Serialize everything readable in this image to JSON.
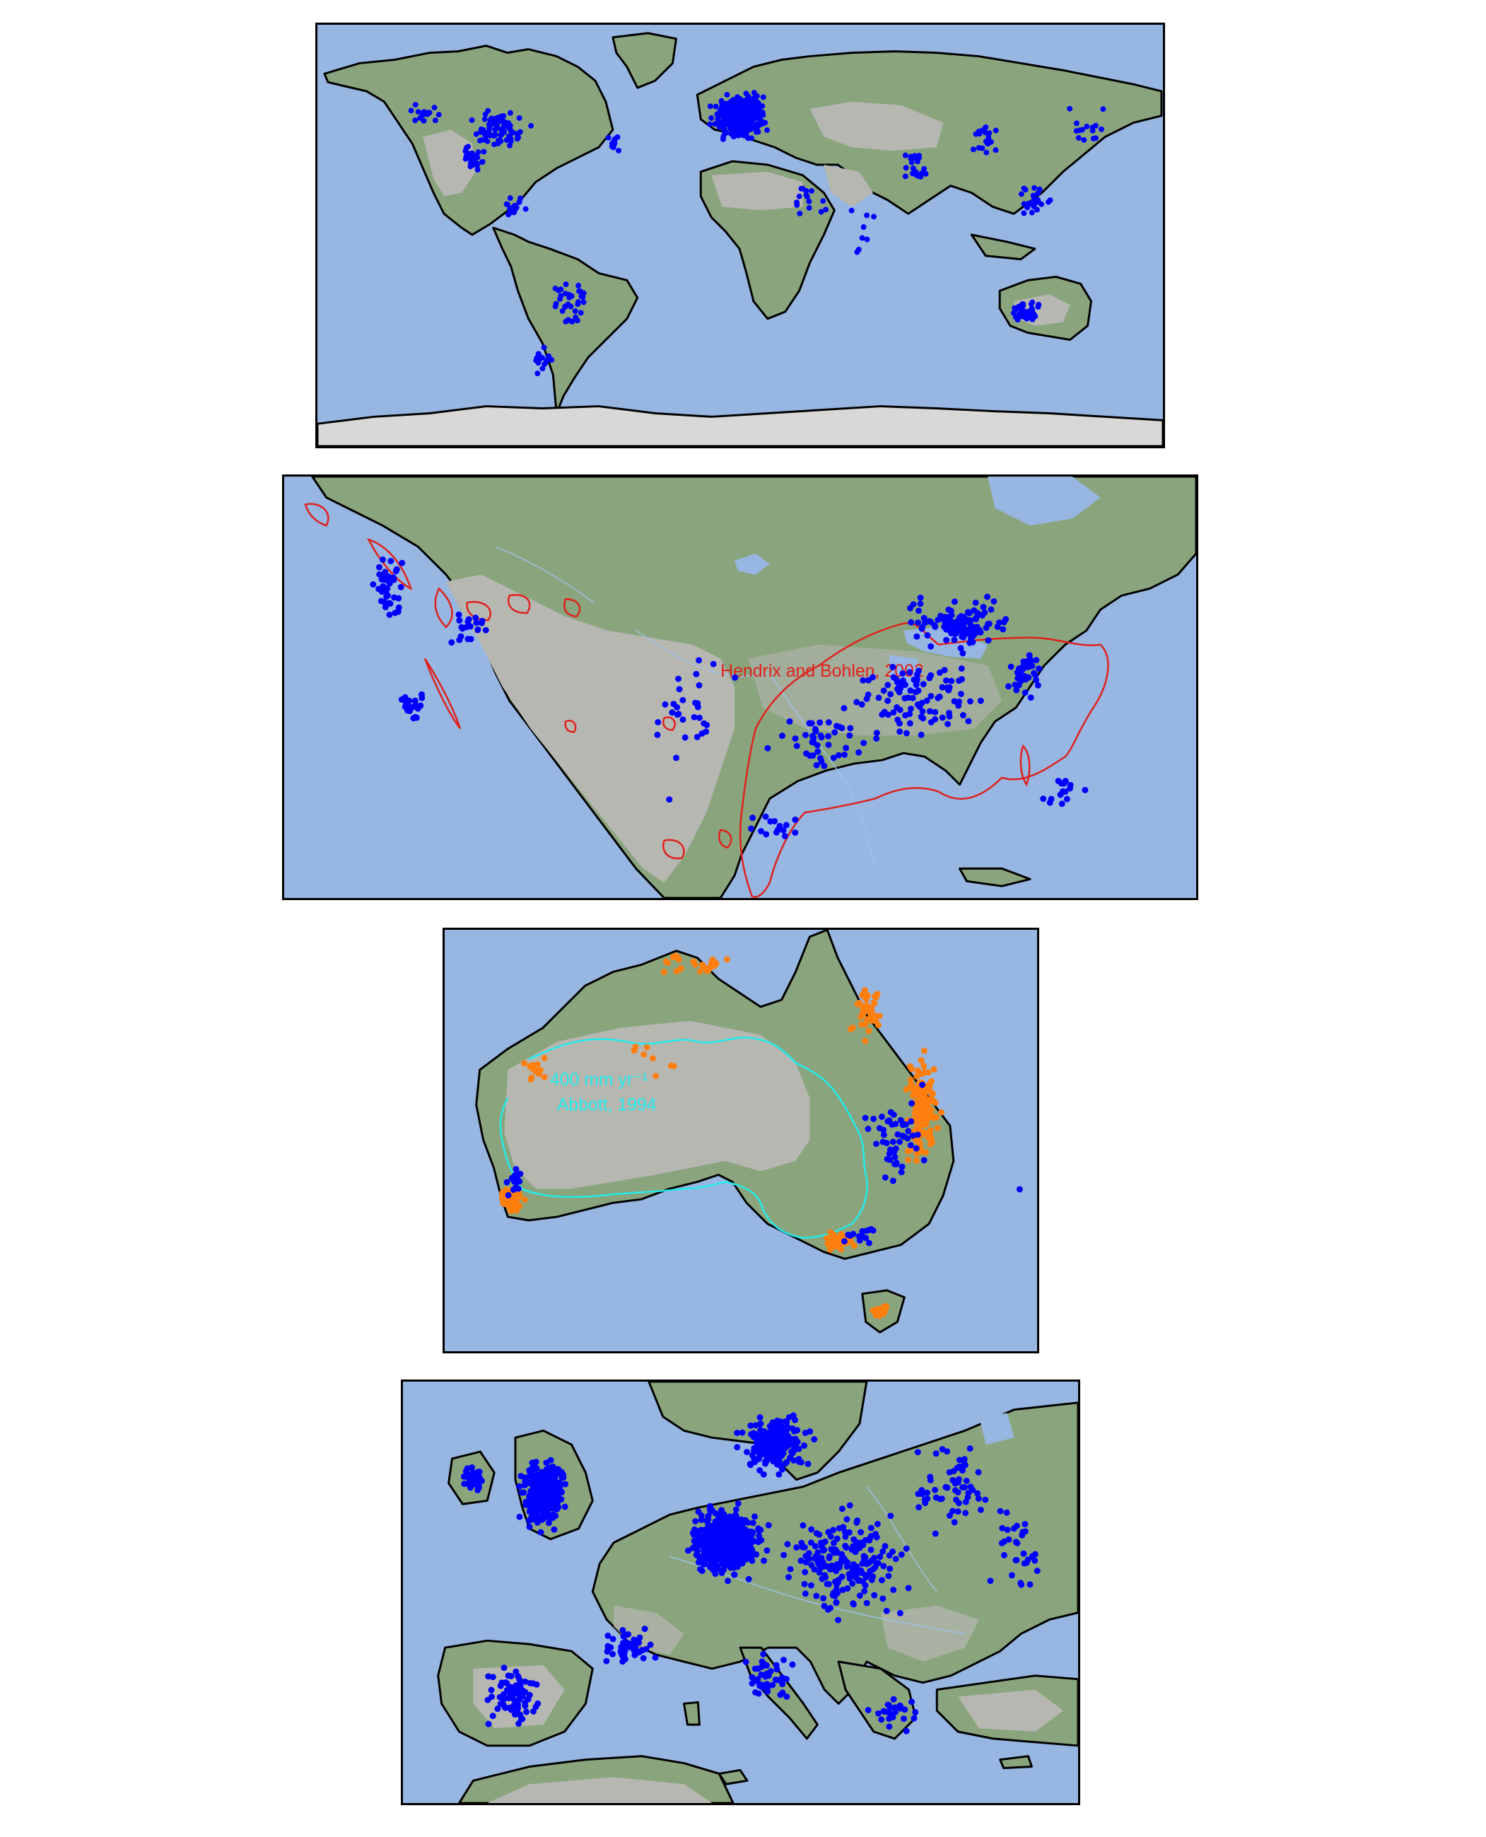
{
  "colors": {
    "ocean": "#97b6e1",
    "land": "#8aa57e",
    "arid": "#b7b7b2",
    "coastline": "#000000",
    "site_marker": "#0000ff",
    "australia_extra_marker": "#ff7f0e",
    "hendrix_range": "#e0201c",
    "isohyet": "#20ecec"
  },
  "panels": [
    {
      "id": "world",
      "region": "World",
      "marker_color": "#0000ff"
    },
    {
      "id": "north-america",
      "region": "North America",
      "marker_color": "#0000ff",
      "annotation": "Hendrix and Bohlen, 2002"
    },
    {
      "id": "australia",
      "region": "Australia",
      "marker_colors": [
        "#0000ff",
        "#ff7f0e"
      ],
      "annotation_line1": "400 mm yr⁻¹",
      "annotation_line2": "Abbott, 1994"
    },
    {
      "id": "europe",
      "region": "Europe",
      "marker_color": "#0000ff"
    }
  ]
}
